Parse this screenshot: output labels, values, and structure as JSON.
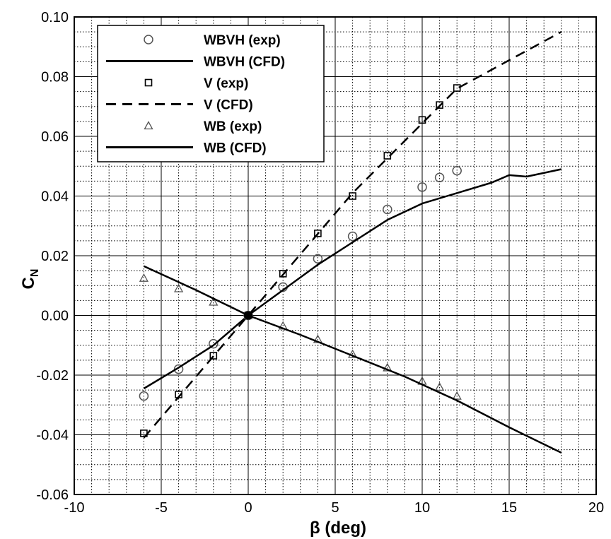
{
  "chart_data": {
    "type": "line",
    "title": "",
    "xlabel": "β (deg)",
    "ylabel": "C",
    "ylabel_subscript": "N",
    "xlim": [
      -10,
      20
    ],
    "ylim": [
      -0.06,
      0.1
    ],
    "x_major_ticks": [
      -10,
      -5,
      0,
      5,
      10,
      15,
      20
    ],
    "y_major_ticks": [
      -0.06,
      -0.04,
      -0.02,
      0.0,
      0.02,
      0.04,
      0.06,
      0.08,
      0.1
    ],
    "x_tick_labels": [
      "-10",
      "-5",
      "0",
      "5",
      "10",
      "15",
      "20"
    ],
    "y_tick_labels": [
      "-0.06",
      "-0.04",
      "-0.02",
      "0.00",
      "0.02",
      "0.04",
      "0.06",
      "0.08",
      "0.10"
    ],
    "grid": "major solid, minor dotted",
    "legend_position": "top-left",
    "series": [
      {
        "name": "WBVH (exp)",
        "kind": "marker",
        "marker": "circle",
        "color": "#555555",
        "x": [
          -6,
          -4,
          -2,
          0,
          2,
          4,
          6,
          8,
          10,
          11,
          12
        ],
        "y": [
          -0.027,
          -0.018,
          -0.0095,
          0.0,
          0.0095,
          0.019,
          0.0265,
          0.0355,
          0.043,
          0.0462,
          0.0485
        ]
      },
      {
        "name": "WBVH (CFD)",
        "kind": "line",
        "style": "solid",
        "color": "#000000",
        "x": [
          -6,
          -4,
          -2,
          0,
          2,
          4,
          6,
          8,
          10,
          12,
          14,
          15,
          16,
          18
        ],
        "y": [
          -0.0245,
          -0.0175,
          -0.01,
          0.0,
          0.0085,
          0.017,
          0.0245,
          0.032,
          0.0375,
          0.041,
          0.0445,
          0.047,
          0.0465,
          0.049
        ]
      },
      {
        "name": "V (exp)",
        "kind": "marker",
        "marker": "square",
        "color": "#000000",
        "x": [
          -6,
          -4,
          -2,
          0,
          2,
          4,
          6,
          8,
          10,
          11,
          12
        ],
        "y": [
          -0.0395,
          -0.0265,
          -0.0135,
          0.0,
          0.014,
          0.0275,
          0.04,
          0.0535,
          0.0655,
          0.0705,
          0.0762
        ]
      },
      {
        "name": "V (CFD)",
        "kind": "line",
        "style": "dashed",
        "color": "#000000",
        "x": [
          -6,
          0,
          6,
          12,
          18
        ],
        "y": [
          -0.041,
          0.0,
          0.041,
          0.076,
          0.095
        ]
      },
      {
        "name": "WB (exp)",
        "kind": "marker",
        "marker": "triangle",
        "color": "#555555",
        "x": [
          -6,
          -4,
          -2,
          0,
          2,
          4,
          6,
          8,
          10,
          11,
          12
        ],
        "y": [
          0.0125,
          0.009,
          0.0045,
          0.0,
          -0.0035,
          -0.008,
          -0.013,
          -0.0175,
          -0.022,
          -0.024,
          -0.027
        ]
      },
      {
        "name": "WB (CFD)",
        "kind": "line",
        "style": "solid",
        "color": "#000000",
        "x": [
          -6,
          -3,
          0,
          3,
          6,
          9,
          12,
          15,
          18
        ],
        "y": [
          0.0165,
          0.0085,
          0.0,
          -0.0065,
          -0.0135,
          -0.0205,
          -0.0285,
          -0.0375,
          -0.046
        ]
      }
    ]
  }
}
